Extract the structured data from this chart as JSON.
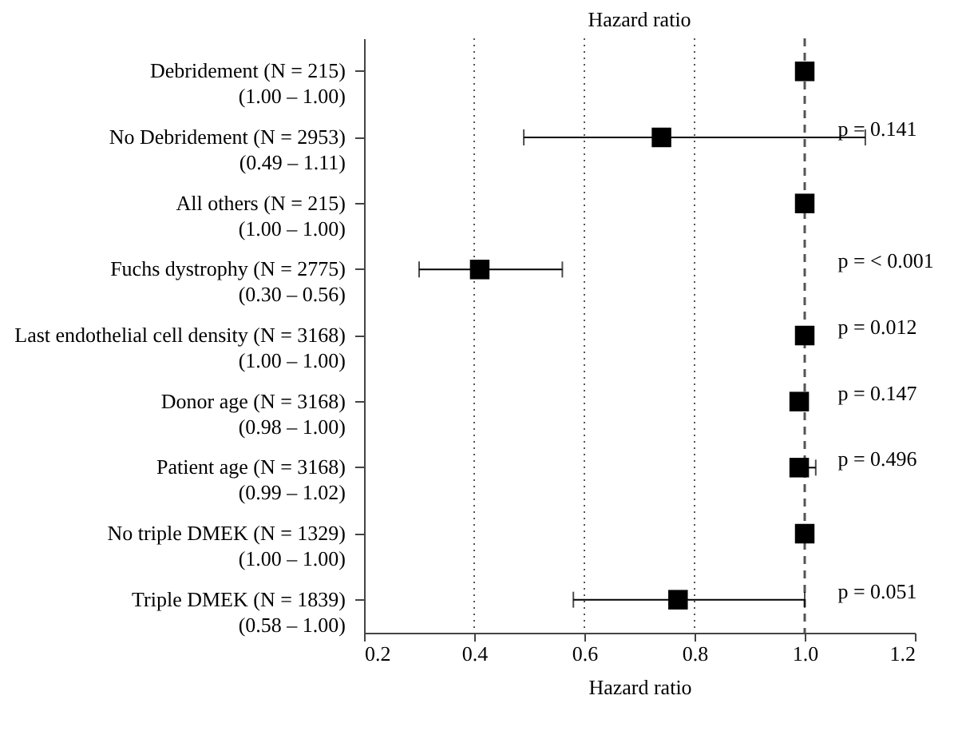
{
  "chart_data": {
    "type": "scatter",
    "orientation": "horizontal",
    "title": "Hazard ratio",
    "xlabel": "Hazard ratio",
    "categories": [
      "Debridement (N = 215)\n(1.00 – 1.00)",
      "No Debridement (N = 2953)\n(0.49 – 1.11)",
      "All others (N = 215)\n(1.00 – 1.00)",
      "Fuchs dystrophy (N = 2775)\n(0.30 – 0.56)",
      "Last endothelial cell density (N = 3168)\n(1.00 – 1.00)",
      "Donor age (N = 3168)\n(0.98 – 1.00)",
      "Patient age (N = 3168)\n(0.99 – 1.02)",
      "No triple DMEK (N = 1329)\n(1.00 – 1.00)",
      "Triple DMEK (N = 1839)\n(0.58 – 1.00)"
    ],
    "values": [
      1.0,
      0.74,
      1.0,
      0.41,
      1.0,
      0.99,
      0.99,
      1.0,
      0.77
    ],
    "errors": [
      [
        1.0,
        1.0
      ],
      [
        0.49,
        1.11
      ],
      [
        1.0,
        1.0
      ],
      [
        0.3,
        0.56
      ],
      [
        1.0,
        1.0
      ],
      [
        0.98,
        1.0
      ],
      [
        0.99,
        1.02
      ],
      [
        1.0,
        1.0
      ],
      [
        0.58,
        1.0
      ]
    ],
    "color": "#000000",
    "marker": "square",
    "xlim": [
      0.2,
      1.2
    ],
    "xticks": [
      {
        "value": 0.2,
        "label": "0.2"
      },
      {
        "value": 0.4,
        "label": "0.4"
      },
      {
        "value": 0.6,
        "label": "0.6"
      },
      {
        "value": 0.8,
        "label": "0.8"
      },
      {
        "value": 1.0,
        "label": "1.0"
      },
      {
        "value": 1.2,
        "label": "1.2"
      }
    ],
    "ref_lines": [
      {
        "axis": "x",
        "value": 0.4,
        "line_style": "dotted"
      },
      {
        "axis": "x",
        "value": 0.6,
        "line_style": "dotted"
      },
      {
        "axis": "x",
        "value": 0.8,
        "line_style": "dotted"
      },
      {
        "axis": "x",
        "value": 1.0,
        "line_style": "dashed"
      }
    ],
    "y2_categories": [
      null,
      "p = 0.141",
      null,
      "p = < 0.001",
      "p = 0.012",
      "p = 0.147",
      "p = 0.496",
      null,
      "p = 0.051"
    ]
  }
}
